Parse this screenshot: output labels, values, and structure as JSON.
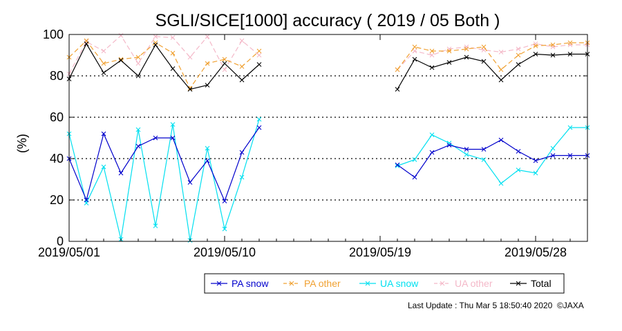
{
  "chart_data": {
    "type": "line",
    "title": "SGLI/SICE[1000] accuracy ( 2019 / 05 Both )",
    "ylabel": "(%)",
    "xlabel": "",
    "ylim": [
      0,
      100
    ],
    "yticks": [
      "0",
      "20",
      "40",
      "60",
      "80",
      "100"
    ],
    "xlim": [
      "2019/05/01",
      "2019/05/31"
    ],
    "xticks": [
      "2019/05/01",
      "2019/05/10",
      "2019/05/19",
      "2019/05/28"
    ],
    "grid": "horizontal dotted at 20,40,60,80",
    "legend_position": "bottom",
    "series": [
      {
        "name": "PA snow",
        "color": "#0000cc",
        "dash": "solid",
        "x": [
          "2019/05/01",
          "2019/05/02",
          "2019/05/03",
          "2019/05/04",
          "2019/05/05",
          "2019/05/06",
          "2019/05/07",
          "2019/05/08",
          "2019/05/09",
          "2019/05/10",
          "2019/05/11",
          "2019/05/12",
          "2019/05/20",
          "2019/05/21",
          "2019/05/22",
          "2019/05/23",
          "2019/05/24",
          "2019/05/25",
          "2019/05/26",
          "2019/05/27",
          "2019/05/28",
          "2019/05/29",
          "2019/05/30",
          "2019/05/31"
        ],
        "values": [
          40,
          20,
          52,
          33,
          46,
          50,
          50,
          28.5,
          39,
          19.5,
          43,
          55,
          37,
          31,
          43,
          46.5,
          44.5,
          44.5,
          49,
          43.5,
          39,
          41.5,
          41.5,
          41.5
        ]
      },
      {
        "name": "PA other",
        "color": "#f0a030",
        "dash": "dashed",
        "x": [
          "2019/05/01",
          "2019/05/02",
          "2019/05/03",
          "2019/05/04",
          "2019/05/05",
          "2019/05/06",
          "2019/05/07",
          "2019/05/08",
          "2019/05/09",
          "2019/05/10",
          "2019/05/11",
          "2019/05/12",
          "2019/05/20",
          "2019/05/21",
          "2019/05/22",
          "2019/05/23",
          "2019/05/24",
          "2019/05/25",
          "2019/05/26",
          "2019/05/27",
          "2019/05/28",
          "2019/05/29",
          "2019/05/30",
          "2019/05/31"
        ],
        "values": [
          89,
          97,
          86,
          88,
          89,
          96,
          91,
          74,
          86,
          88,
          84.5,
          92,
          83,
          94,
          92,
          92,
          93,
          94,
          83,
          90,
          94.5,
          95,
          96,
          96
        ]
      },
      {
        "name": "UA snow",
        "color": "#00e0f0",
        "dash": "solid",
        "x": [
          "2019/05/01",
          "2019/05/02",
          "2019/05/03",
          "2019/05/04",
          "2019/05/05",
          "2019/05/06",
          "2019/05/07",
          "2019/05/08",
          "2019/05/09",
          "2019/05/10",
          "2019/05/11",
          "2019/05/12",
          "2019/05/20",
          "2019/05/21",
          "2019/05/22",
          "2019/05/23",
          "2019/05/24",
          "2019/05/25",
          "2019/05/26",
          "2019/05/27",
          "2019/05/28",
          "2019/05/29",
          "2019/05/30",
          "2019/05/31"
        ],
        "values": [
          52,
          18.5,
          36,
          1,
          54,
          7.5,
          56.5,
          0.5,
          45,
          6,
          31,
          59,
          36.5,
          39.5,
          51.5,
          47.5,
          42,
          39.5,
          28,
          34.5,
          33,
          45,
          55,
          55
        ]
      },
      {
        "name": "UA other",
        "color": "#f4b8c8",
        "dash": "dashed",
        "x": [
          "2019/05/01",
          "2019/05/02",
          "2019/05/03",
          "2019/05/04",
          "2019/05/05",
          "2019/05/06",
          "2019/05/07",
          "2019/05/08",
          "2019/05/09",
          "2019/05/10",
          "2019/05/11",
          "2019/05/12",
          "2019/05/20",
          "2019/05/21",
          "2019/05/22",
          "2019/05/23",
          "2019/05/24",
          "2019/05/25",
          "2019/05/26",
          "2019/05/27",
          "2019/05/28",
          "2019/05/29",
          "2019/05/30",
          "2019/05/31"
        ],
        "values": [
          81,
          96.5,
          92,
          99.5,
          86,
          99,
          98.5,
          89,
          99,
          83,
          97,
          90,
          83,
          92,
          90,
          93,
          94,
          92.5,
          91.5,
          93,
          95.5,
          94,
          95,
          95
        ]
      },
      {
        "name": "Total",
        "color": "#000000",
        "dash": "solid",
        "x": [
          "2019/05/01",
          "2019/05/02",
          "2019/05/03",
          "2019/05/04",
          "2019/05/05",
          "2019/05/06",
          "2019/05/07",
          "2019/05/08",
          "2019/05/09",
          "2019/05/10",
          "2019/05/11",
          "2019/05/12",
          "2019/05/20",
          "2019/05/21",
          "2019/05/22",
          "2019/05/23",
          "2019/05/24",
          "2019/05/25",
          "2019/05/26",
          "2019/05/27",
          "2019/05/28",
          "2019/05/29",
          "2019/05/30",
          "2019/05/31"
        ],
        "values": [
          78.5,
          95.5,
          81.5,
          87.5,
          80,
          95,
          83.5,
          73.5,
          75.5,
          86,
          78,
          85.5,
          73.5,
          88,
          84,
          86.5,
          89,
          87,
          78,
          85.5,
          90.5,
          90,
          90.5,
          90.5
        ]
      }
    ]
  },
  "footer": {
    "last_update": "Last Update : Thu Mar  5 18:50:40 2020",
    "copyright": "©JAXA"
  }
}
